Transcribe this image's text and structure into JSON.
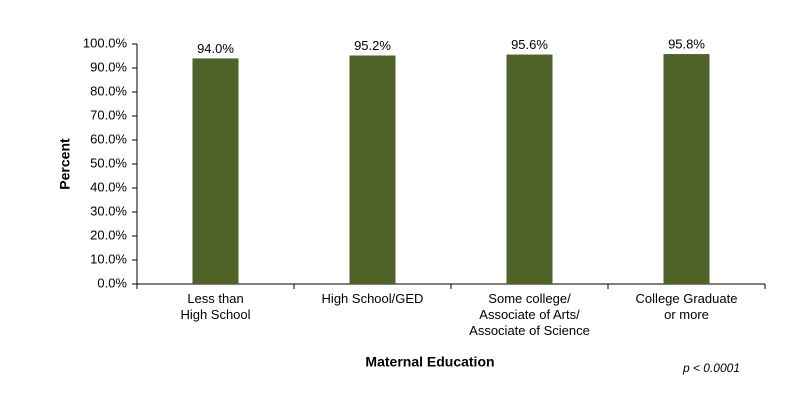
{
  "chart_data": {
    "type": "bar",
    "categories": [
      "Less than\nHigh School",
      "High School/GED",
      "Some college/\nAssociate of Arts/\nAssociate of Science",
      "College Graduate\nor more"
    ],
    "values": [
      94.0,
      95.2,
      95.6,
      95.8
    ],
    "value_labels": [
      "94.0%",
      "95.2%",
      "95.6%",
      "95.8%"
    ],
    "color": "#4f6228",
    "ylim": [
      0,
      100
    ],
    "yticks": [
      {
        "value": 0,
        "label": "0.0%"
      },
      {
        "value": 10,
        "label": "10.0%"
      },
      {
        "value": 20,
        "label": "20.0%"
      },
      {
        "value": 30,
        "label": "30.0%"
      },
      {
        "value": 40,
        "label": "40.0%"
      },
      {
        "value": 50,
        "label": "50.0%"
      },
      {
        "value": 60,
        "label": "60.0%"
      },
      {
        "value": 70,
        "label": "70.0%"
      },
      {
        "value": 80,
        "label": "80.0%"
      },
      {
        "value": 90,
        "label": "90.0%"
      },
      {
        "value": 100,
        "label": "100.0%"
      }
    ],
    "ylabel": "Percent",
    "xlabel": "Maternal Education",
    "annotation": "p < 0.0001",
    "grid": false
  }
}
